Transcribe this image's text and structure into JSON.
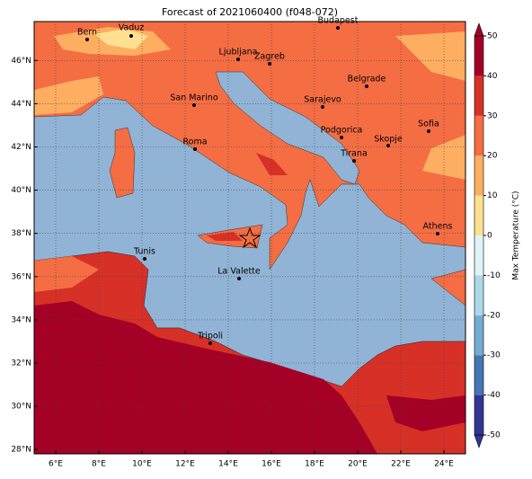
{
  "map": {
    "title": "Forecast of 2021060400 (f048-072)",
    "lonlim": [
      5,
      25
    ],
    "latlim": [
      27.8,
      47.8
    ],
    "lon_ticks": [
      {
        "value": 6,
        "label": "6°E"
      },
      {
        "value": 8,
        "label": "8°E"
      },
      {
        "value": 10,
        "label": "10°E"
      },
      {
        "value": 12,
        "label": "12°E"
      },
      {
        "value": 14,
        "label": "14°E"
      },
      {
        "value": 16,
        "label": "16°E"
      },
      {
        "value": 18,
        "label": "18°E"
      },
      {
        "value": 20,
        "label": "20°E"
      },
      {
        "value": 22,
        "label": "22°E"
      },
      {
        "value": 24,
        "label": "24°E"
      }
    ],
    "lat_ticks": [
      {
        "value": 28,
        "label": "28°N"
      },
      {
        "value": 30,
        "label": "30°N"
      },
      {
        "value": 32,
        "label": "32°N"
      },
      {
        "value": 34,
        "label": "34°N"
      },
      {
        "value": 36,
        "label": "36°N"
      },
      {
        "value": 38,
        "label": "38°N"
      },
      {
        "value": 40,
        "label": "40°N"
      },
      {
        "value": 42,
        "label": "42°N"
      },
      {
        "value": 44,
        "label": "44°N"
      },
      {
        "value": 46,
        "label": "46°N"
      }
    ],
    "cities": [
      "Bern",
      "Vaduz",
      "Budapest",
      "Ljubljana",
      "Zagreb",
      "Belgrade",
      "San Marino",
      "Sarajevo",
      "Sofia",
      "Podgorica",
      "Skopje",
      "Roma",
      "Tirana",
      "Athens",
      "Tunis",
      "La Valette",
      "Tripoli"
    ],
    "colorbar": {
      "label": "Max Temperature (°C)",
      "lim": [
        -50,
        50
      ],
      "ticks": [
        -50,
        -40,
        -30,
        -20,
        -10,
        0,
        10,
        20,
        30,
        40,
        50
      ],
      "colors": [
        "#313695",
        "#4575b4",
        "#74add1",
        "#abd9e9",
        "#e0f3f8",
        "#fee090",
        "#fdae61",
        "#f46d43",
        "#d73027",
        "#a50026"
      ]
    }
  }
}
